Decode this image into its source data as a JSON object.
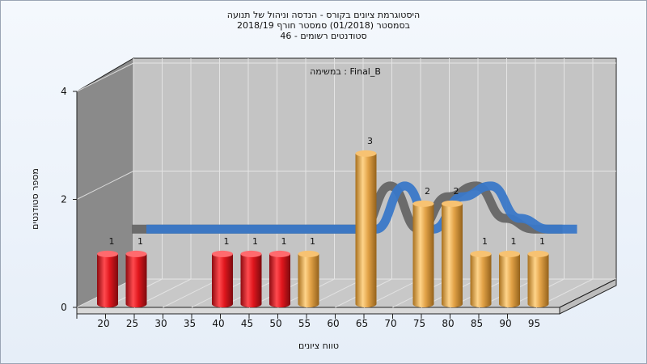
{
  "chart_data": {
    "type": "bar",
    "title_lines": [
      "היסטוגרמת ציונים בקורס - הנדסה וניהול של תנועה",
      "בסמסטר  (01/2018)  סמסטר חורף 2018/19",
      "סטודנטים רשומים - 46"
    ],
    "annotation": "במשימה : Final_B",
    "xlabel": "טווח ציונים",
    "ylabel": "מספר סטודנטים",
    "ylim": [
      0,
      4
    ],
    "y_ticks": [
      "0",
      "2",
      "4"
    ],
    "categories": [
      "20",
      "25",
      "30",
      "35",
      "40",
      "45",
      "50",
      "55",
      "60",
      "65",
      "70",
      "75",
      "80",
      "85",
      "90",
      "95"
    ],
    "values": [
      1,
      1,
      0,
      0,
      1,
      1,
      1,
      1,
      0,
      3,
      0,
      2,
      2,
      1,
      1,
      1
    ],
    "colors": {
      "fail_bar": "#d8141c",
      "pass_bar": "#e0a040",
      "curve_front": "#3a78c8",
      "curve_back": "#6b6b6b",
      "wall": "#c4c4c4",
      "left_wall": "#8a8a8a",
      "floor": "#c9c9c9"
    },
    "grid": true
  }
}
